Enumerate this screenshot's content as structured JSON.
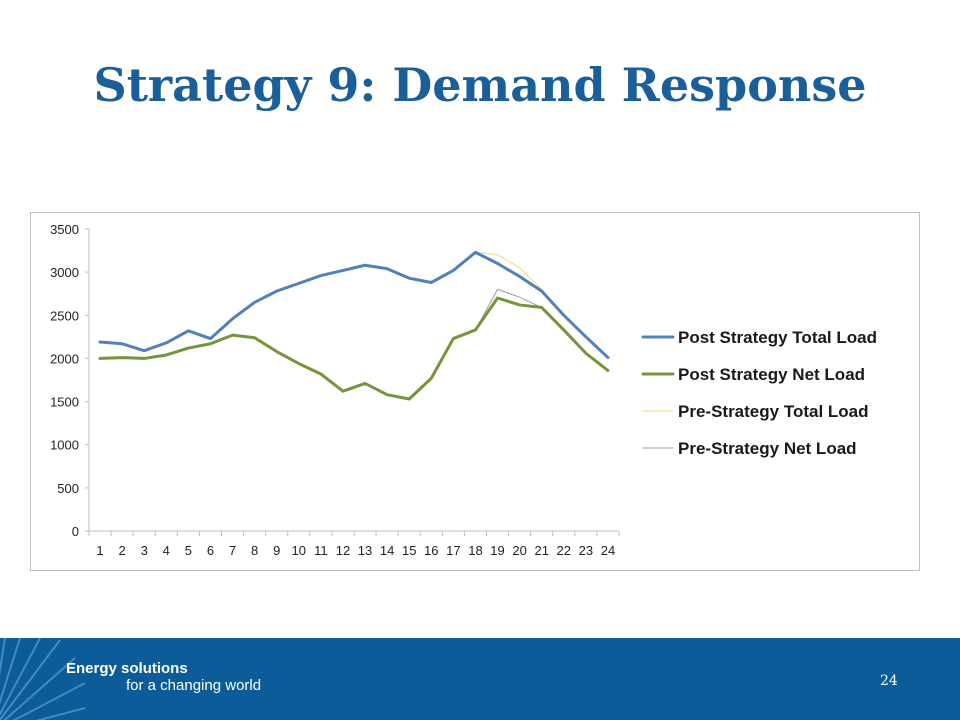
{
  "slide": {
    "title": "Strategy 9:  Demand Response",
    "page_number": "24"
  },
  "branding": {
    "line1": "Energy solutions",
    "line2": "for a changing world",
    "footer_color": "#0b5c99",
    "logo_icon": "starburst-icon"
  },
  "colors": {
    "title": "#1a5e9a"
  },
  "chart_data": {
    "type": "line",
    "title": "",
    "xlabel": "",
    "ylabel": "",
    "ylim": [
      0,
      3500
    ],
    "yticks": [
      0,
      500,
      1000,
      1500,
      2000,
      2500,
      3000,
      3500
    ],
    "grid": false,
    "legend_position": "right",
    "x": [
      1,
      2,
      3,
      4,
      5,
      6,
      7,
      8,
      9,
      10,
      11,
      12,
      13,
      14,
      15,
      16,
      17,
      18,
      19,
      20,
      21,
      22,
      23,
      24
    ],
    "x_tick_labels": [
      "1",
      "2",
      "3",
      "4",
      "5",
      "6",
      "7",
      "8",
      "9",
      "10",
      "11",
      "12",
      "13",
      "14",
      "15",
      "16",
      "17",
      "18",
      "19",
      "20",
      "21",
      "22",
      "23",
      "24"
    ],
    "series": [
      {
        "name": "Pre-Strategy Total Load",
        "color": "#f5d67a",
        "width": 1,
        "values": [
          2190,
          2170,
          2090,
          2180,
          2320,
          2230,
          2460,
          2650,
          2780,
          2870,
          2960,
          3020,
          3080,
          3040,
          2930,
          2880,
          3020,
          3230,
          3200,
          3050,
          2800,
          2500,
          2250,
          2010
        ]
      },
      {
        "name": "Pre-Strategy Net Load",
        "color": "#a09aa6",
        "width": 1,
        "values": [
          2000,
          2010,
          2000,
          2040,
          2120,
          2170,
          2270,
          2240,
          2080,
          1940,
          1820,
          1620,
          1710,
          1580,
          1530,
          1770,
          2230,
          2330,
          2800,
          2710,
          2590,
          2330,
          2060,
          1860
        ]
      },
      {
        "name": "Post Strategy Total Load",
        "color": "#4f81bd",
        "width": 3,
        "values": [
          2190,
          2170,
          2090,
          2180,
          2320,
          2230,
          2460,
          2650,
          2780,
          2870,
          2960,
          3020,
          3080,
          3040,
          2930,
          2880,
          3020,
          3230,
          3100,
          2950,
          2780,
          2500,
          2250,
          2010
        ]
      },
      {
        "name": "Post Strategy Net Load",
        "color": "#77933c",
        "width": 3,
        "values": [
          2000,
          2010,
          2000,
          2040,
          2120,
          2170,
          2270,
          2240,
          2080,
          1940,
          1820,
          1620,
          1710,
          1580,
          1530,
          1770,
          2230,
          2330,
          2700,
          2620,
          2590,
          2330,
          2060,
          1860
        ]
      }
    ],
    "legend_order": [
      "Post Strategy Total Load",
      "Post Strategy Net Load",
      "Pre-Strategy Total Load",
      "Pre-Strategy Net Load"
    ],
    "overlap_color": "#7ea08a"
  }
}
